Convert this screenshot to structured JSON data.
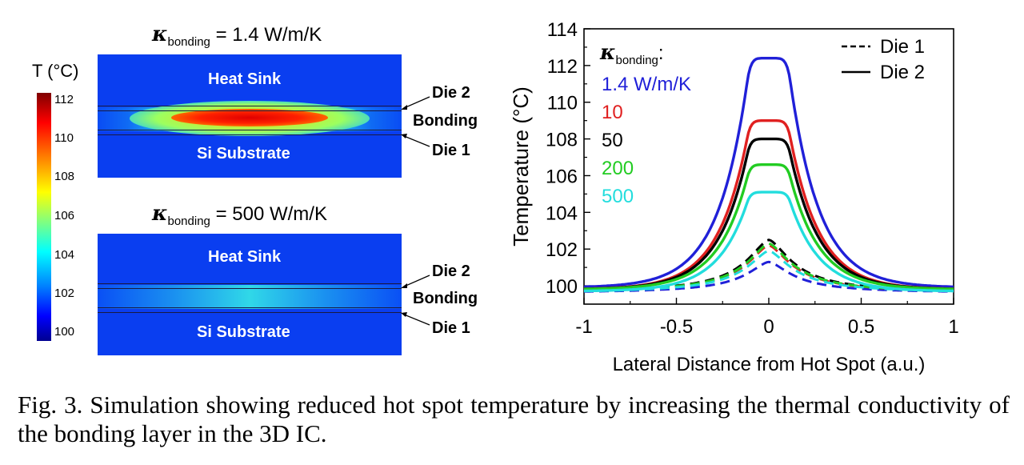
{
  "simulation": {
    "colorbar": {
      "label": "T (°C)",
      "ticks": [
        "112",
        "110",
        "108",
        "106",
        "104",
        "102",
        "100"
      ]
    },
    "panels": [
      {
        "kappa_symbol": "κ",
        "kappa_subscript": "bonding",
        "kappa_value": "= 1.4 W/m/K",
        "heat_sink": "Heat Sink",
        "substrate": "Si Substrate",
        "die2": "Die 2",
        "bonding": "Bonding",
        "die1": "Die 1"
      },
      {
        "kappa_symbol": "κ",
        "kappa_subscript": "bonding",
        "kappa_value": "= 500 W/m/K",
        "heat_sink": "Heat Sink",
        "substrate": "Si Substrate",
        "die2": "Die 2",
        "bonding": "Bonding",
        "die1": "Die 1"
      }
    ]
  },
  "chart_data": {
    "type": "line",
    "xlabel": "Lateral Distance from Hot Spot (a.u.)",
    "ylabel": "Temperature (°C)",
    "xlim": [
      -1,
      1
    ],
    "ylim": [
      99,
      114
    ],
    "x_ticks": [
      "-1",
      "-0.5",
      "0",
      "0.5",
      "1"
    ],
    "y_ticks": [
      "100",
      "102",
      "104",
      "106",
      "108",
      "110",
      "112",
      "114"
    ],
    "legend_title_symbol": "κ",
    "legend_title_subscript": "bonding",
    "legend_title_suffix": ":",
    "legend_items": [
      {
        "label": "1.4 W/m/K",
        "color": "#2020d8"
      },
      {
        "label": "10",
        "color": "#e02020"
      },
      {
        "label": "50",
        "color": "#000000"
      },
      {
        "label": "200",
        "color": "#22cc22"
      },
      {
        "label": "500",
        "color": "#22dddd"
      }
    ],
    "style_legend": [
      {
        "label": "Die 1",
        "dash": true
      },
      {
        "label": "Die 2",
        "dash": false
      }
    ],
    "series": [
      {
        "kappa": "1.4",
        "color": "#2020d8",
        "die2_peak": 112.4,
        "die2_edge": 99.9,
        "die1_peak": 101.3,
        "die1_edge": 99.6
      },
      {
        "kappa": "10",
        "color": "#e02020",
        "die2_peak": 109.0,
        "die2_edge": 99.8,
        "die1_peak": 102.2,
        "die1_edge": 99.6
      },
      {
        "kappa": "50",
        "color": "#000000",
        "die2_peak": 108.0,
        "die2_edge": 99.8,
        "die1_peak": 102.5,
        "die1_edge": 99.6
      },
      {
        "kappa": "200",
        "color": "#22cc22",
        "die2_peak": 106.6,
        "die2_edge": 99.8,
        "die1_peak": 102.3,
        "die1_edge": 99.6
      },
      {
        "kappa": "500",
        "color": "#22dddd",
        "die2_peak": 105.1,
        "die2_edge": 99.7,
        "die1_peak": 101.9,
        "die1_edge": 99.6
      }
    ]
  },
  "caption": "Fig. 3. Simulation showing reduced hot spot temperature by increasing the thermal conductivity of the bonding layer in the 3D IC."
}
